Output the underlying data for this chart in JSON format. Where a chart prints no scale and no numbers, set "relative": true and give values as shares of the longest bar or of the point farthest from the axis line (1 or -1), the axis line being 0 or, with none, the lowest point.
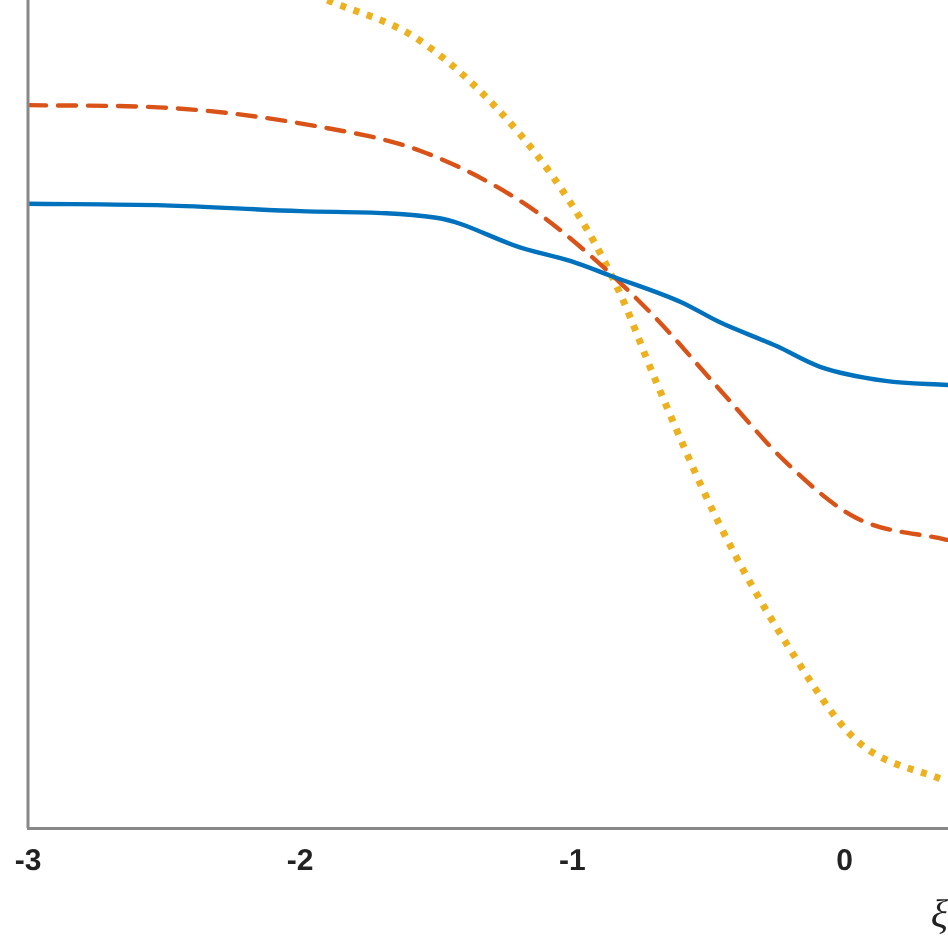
{
  "chart_data": {
    "type": "line",
    "relative": true,
    "xlabel": "ξ",
    "xlim": [
      -3,
      0.38
    ],
    "xticks": [
      -3,
      -2,
      -1,
      0
    ],
    "grid": false,
    "legend": false,
    "marker": "none",
    "series": [
      {
        "color": "#0072bd",
        "line_style": "solid",
        "x": [
          -3,
          -2.5,
          -2,
          -1.5,
          -1.19,
          -1,
          -0.86,
          -0.6,
          -0.46,
          -0.25,
          -0.09,
          0.15,
          0.38
        ],
        "values": [
          0.754,
          0.752,
          0.745,
          0.737,
          0.701,
          0.684,
          0.667,
          0.635,
          0.611,
          0.582,
          0.557,
          0.54,
          0.535
        ]
      },
      {
        "color": "#d95319",
        "line_style": "dashed",
        "x": [
          -3,
          -2.5,
          -1.93,
          -1.56,
          -1.19,
          -0.95,
          -0.7,
          -0.46,
          -0.21,
          0.04,
          0.375
        ],
        "values": [
          0.873,
          0.87,
          0.847,
          0.818,
          0.757,
          0.696,
          0.618,
          0.53,
          0.44,
          0.375,
          0.348
        ]
      },
      {
        "color": "#edb120",
        "line_style": "dotted",
        "x": [
          -1.9,
          -1.56,
          -1.19,
          -0.95,
          -0.82,
          -0.7,
          -0.46,
          -0.21,
          0.04,
          0.375
        ],
        "values": [
          1,
          0.951,
          0.837,
          0.725,
          0.642,
          0.545,
          0.367,
          0.221,
          0.107,
          0.056
        ]
      }
    ]
  }
}
